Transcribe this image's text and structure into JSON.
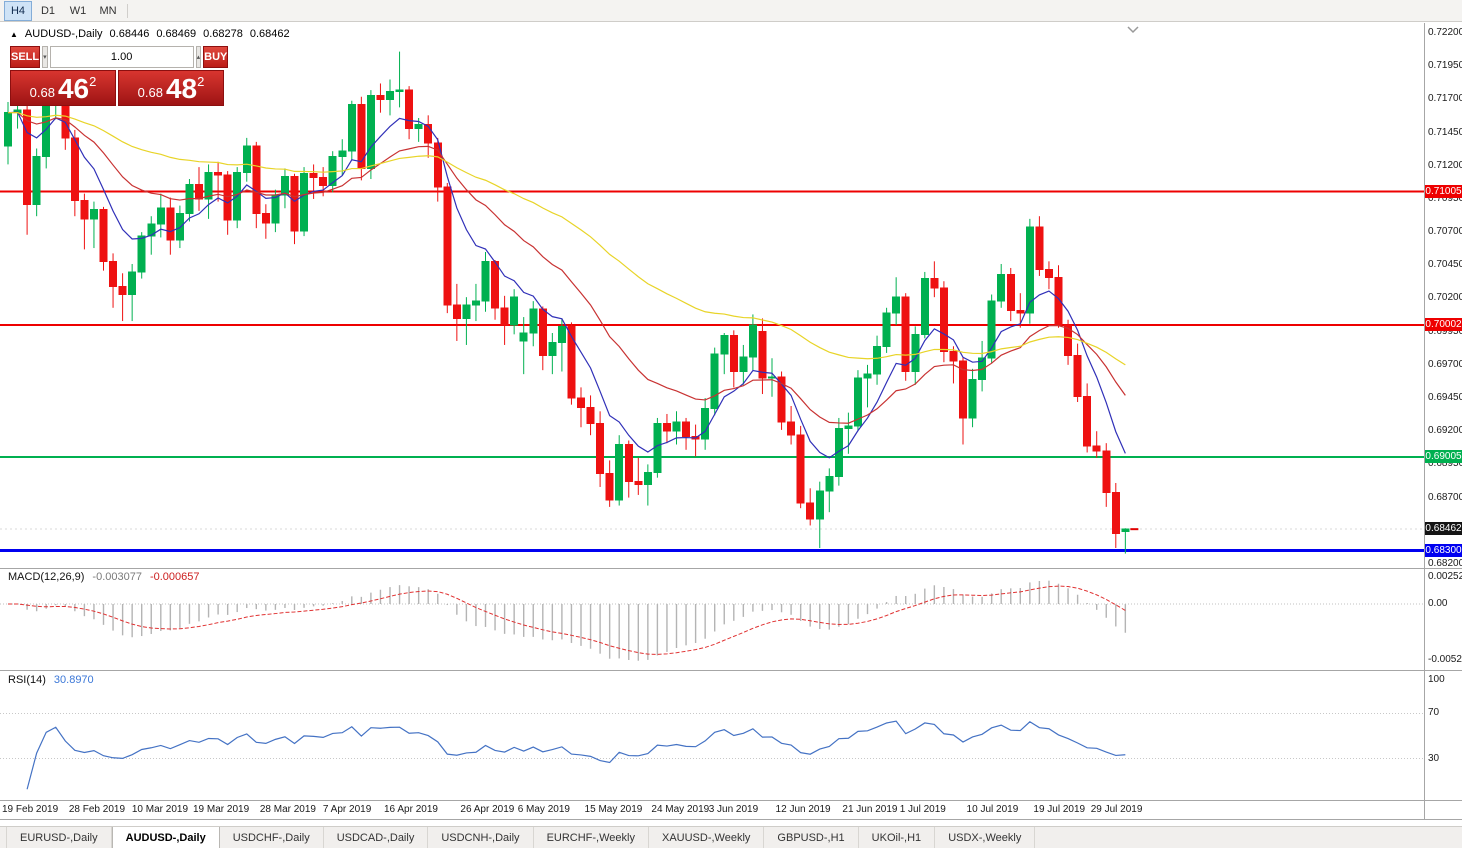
{
  "toolbar": {
    "timeframes": [
      {
        "label": "H4",
        "active": true
      },
      {
        "label": "D1",
        "active": false
      },
      {
        "label": "W1",
        "active": false
      },
      {
        "label": "MN",
        "active": false
      }
    ]
  },
  "chart_header": {
    "collapse_icon": "▲",
    "symbol": "AUDUSD-,Daily",
    "open": "0.68446",
    "high": "0.68469",
    "low": "0.68278",
    "close": "0.68462"
  },
  "trade_panel": {
    "sell_label": "SELL",
    "buy_label": "BUY",
    "volume": "1.00",
    "spin_down": "▾",
    "spin_up": "▴",
    "sell_price_small": "0.68",
    "sell_price_big": "46",
    "sell_price_sup": "2",
    "buy_price_small": "0.68",
    "buy_price_big": "48",
    "buy_price_sup": "2"
  },
  "price_axis": {
    "labels": [
      "0.72200",
      "0.71950",
      "0.71700",
      "0.71450",
      "0.71200",
      "0.70950",
      "0.70700",
      "0.70450",
      "0.70200",
      "0.69950",
      "0.69700",
      "0.69450",
      "0.69200",
      "0.68950",
      "0.68700",
      "0.68200"
    ]
  },
  "indicators": {
    "macd": {
      "label": "MACD(12,26,9)",
      "main_value": "-0.003077",
      "signal_value": "-0.000657",
      "axis_labels": [
        {
          "text": "0.0025220",
          "value": 0.002522
        },
        {
          "text": "0.00",
          "value": 0
        },
        {
          "text": "-0.0052340",
          "value": -0.005234
        }
      ]
    },
    "rsi": {
      "label": "RSI(14)",
      "value": "30.8970",
      "axis_labels": [
        {
          "text": "100",
          "value": 100
        },
        {
          "text": "70",
          "value": 70
        },
        {
          "text": "30",
          "value": 30
        }
      ],
      "levels": [
        70,
        30
      ]
    }
  },
  "tabbar": {
    "tabs": [
      {
        "label": "EURUSD-,Daily",
        "active": false
      },
      {
        "label": "AUDUSD-,Daily",
        "active": true
      },
      {
        "label": "USDCHF-,Daily",
        "active": false
      },
      {
        "label": "USDCAD-,Daily",
        "active": false
      },
      {
        "label": "USDCNH-,Daily",
        "active": false
      },
      {
        "label": "EURCHF-,Weekly",
        "active": false
      },
      {
        "label": "XAUUSD-,Weekly",
        "active": false
      },
      {
        "label": "GBPUSD-,H1",
        "active": false
      },
      {
        "label": "UKOil-,H1",
        "active": false
      },
      {
        "label": "USDX-,Weekly",
        "active": false
      }
    ]
  },
  "chart_data": {
    "type": "candlestick",
    "symbol": "AUDUSD",
    "timeframe": "Daily",
    "ylim": [
      0.68177,
      0.72253
    ],
    "up_color": "#00b050",
    "down_color": "#ee1111",
    "hlines": [
      {
        "value": 0.71005,
        "label": "0.71005",
        "color": "#ee0000",
        "width": 2
      },
      {
        "value": 0.70002,
        "label": "0.70002",
        "color": "#ee0000",
        "width": 2
      },
      {
        "value": 0.69005,
        "label": "0.69005",
        "color": "#00b050",
        "width": 2
      },
      {
        "value": 0.683,
        "label": "0.68300",
        "color": "#0000f0",
        "width": 3
      }
    ],
    "current_price": {
      "value": 0.68462,
      "label": "0.68462"
    },
    "moving_averages": [
      {
        "period": 8,
        "color": "#3030b8"
      },
      {
        "period": 21,
        "color": "#c83232"
      },
      {
        "period": 55,
        "color": "#e8d428"
      }
    ],
    "macd_params": [
      12,
      26,
      9
    ],
    "rsi_period": 14,
    "x_labels": [
      {
        "text": "19 Feb 2019",
        "bar": 0
      },
      {
        "text": "28 Feb 2019",
        "bar": 7
      },
      {
        "text": "10 Mar 2019",
        "bar": 13.6
      },
      {
        "text": "19 Mar 2019",
        "bar": 20
      },
      {
        "text": "28 Mar 2019",
        "bar": 27
      },
      {
        "text": "7 Apr 2019",
        "bar": 33.6
      },
      {
        "text": "16 Apr 2019",
        "bar": 40
      },
      {
        "text": "26 Apr 2019",
        "bar": 48
      },
      {
        "text": "6 May 2019",
        "bar": 54
      },
      {
        "text": "15 May 2019",
        "bar": 61
      },
      {
        "text": "24 May 2019",
        "bar": 68
      },
      {
        "text": "3 Jun 2019",
        "bar": 74
      },
      {
        "text": "12 Jun 2019",
        "bar": 81
      },
      {
        "text": "21 Jun 2019",
        "bar": 88
      },
      {
        "text": "1 Jul 2019",
        "bar": 94
      },
      {
        "text": "10 Jul 2019",
        "bar": 101
      },
      {
        "text": "19 Jul 2019",
        "bar": 108
      },
      {
        "text": "29 Jul 2019",
        "bar": 114
      }
    ],
    "ohlc": [
      [
        0.7135,
        0.7168,
        0.7121,
        0.716
      ],
      [
        0.716,
        0.7175,
        0.7148,
        0.7162
      ],
      [
        0.7162,
        0.7167,
        0.7068,
        0.7091
      ],
      [
        0.7091,
        0.7133,
        0.7082,
        0.7127
      ],
      [
        0.7127,
        0.7178,
        0.7118,
        0.717
      ],
      [
        0.717,
        0.719,
        0.7155,
        0.7186
      ],
      [
        0.7186,
        0.7191,
        0.7132,
        0.7141
      ],
      [
        0.7141,
        0.7147,
        0.7082,
        0.7094
      ],
      [
        0.7094,
        0.7099,
        0.7057,
        0.708
      ],
      [
        0.708,
        0.7093,
        0.7058,
        0.7087
      ],
      [
        0.7087,
        0.7089,
        0.7041,
        0.7048
      ],
      [
        0.7048,
        0.7054,
        0.7013,
        0.7029
      ],
      [
        0.7029,
        0.7039,
        0.7003,
        0.7023
      ],
      [
        0.7023,
        0.7046,
        0.7003,
        0.704
      ],
      [
        0.704,
        0.707,
        0.7035,
        0.7067
      ],
      [
        0.7067,
        0.7082,
        0.7053,
        0.7076
      ],
      [
        0.7076,
        0.7099,
        0.7066,
        0.7088
      ],
      [
        0.7088,
        0.7096,
        0.7053,
        0.7064
      ],
      [
        0.7064,
        0.709,
        0.7058,
        0.7084
      ],
      [
        0.7084,
        0.711,
        0.7078,
        0.7106
      ],
      [
        0.7106,
        0.7119,
        0.7086,
        0.7095
      ],
      [
        0.7095,
        0.7121,
        0.708,
        0.7115
      ],
      [
        0.7115,
        0.7123,
        0.7093,
        0.7113
      ],
      [
        0.7113,
        0.7116,
        0.7068,
        0.7079
      ],
      [
        0.7079,
        0.7119,
        0.7073,
        0.7115
      ],
      [
        0.7115,
        0.7141,
        0.7108,
        0.7135
      ],
      [
        0.7135,
        0.7138,
        0.7073,
        0.7084
      ],
      [
        0.7084,
        0.7091,
        0.7065,
        0.7077
      ],
      [
        0.7077,
        0.7102,
        0.707,
        0.7098
      ],
      [
        0.7098,
        0.7118,
        0.7088,
        0.7112
      ],
      [
        0.7112,
        0.7114,
        0.7061,
        0.7071
      ],
      [
        0.7071,
        0.7119,
        0.7067,
        0.7114
      ],
      [
        0.7114,
        0.7121,
        0.7095,
        0.7111
      ],
      [
        0.7111,
        0.7119,
        0.7097,
        0.7105
      ],
      [
        0.7105,
        0.7131,
        0.71,
        0.7127
      ],
      [
        0.7127,
        0.714,
        0.7113,
        0.7131
      ],
      [
        0.7131,
        0.7169,
        0.7124,
        0.7166
      ],
      [
        0.7166,
        0.7172,
        0.7109,
        0.7118
      ],
      [
        0.7118,
        0.7177,
        0.711,
        0.7173
      ],
      [
        0.7173,
        0.7182,
        0.716,
        0.717
      ],
      [
        0.717,
        0.7185,
        0.7158,
        0.7176
      ],
      [
        0.7176,
        0.7206,
        0.7164,
        0.7177
      ],
      [
        0.7177,
        0.718,
        0.714,
        0.7148
      ],
      [
        0.7148,
        0.7156,
        0.7138,
        0.7151
      ],
      [
        0.7151,
        0.7158,
        0.7126,
        0.7137
      ],
      [
        0.7137,
        0.7141,
        0.7093,
        0.7104
      ],
      [
        0.7104,
        0.7107,
        0.7009,
        0.7015
      ],
      [
        0.7015,
        0.7031,
        0.6988,
        0.7005
      ],
      [
        0.7005,
        0.7021,
        0.6985,
        0.7015
      ],
      [
        0.7015,
        0.7031,
        0.7003,
        0.7018
      ],
      [
        0.7018,
        0.7055,
        0.701,
        0.7048
      ],
      [
        0.7048,
        0.7049,
        0.7004,
        0.7013
      ],
      [
        0.7013,
        0.7022,
        0.6985,
        0.7
      ],
      [
        0.7,
        0.7027,
        0.6993,
        0.7021
      ],
      [
        0.6988,
        0.7006,
        0.6963,
        0.6994
      ],
      [
        0.6994,
        0.7018,
        0.6984,
        0.7012
      ],
      [
        0.7012,
        0.7014,
        0.6966,
        0.6977
      ],
      [
        0.6977,
        0.6994,
        0.6963,
        0.6987
      ],
      [
        0.6987,
        0.7005,
        0.6965,
        0.6999
      ],
      [
        0.6999,
        0.7002,
        0.694,
        0.6945
      ],
      [
        0.6945,
        0.6953,
        0.6923,
        0.6938
      ],
      [
        0.6938,
        0.6947,
        0.6917,
        0.6926
      ],
      [
        0.6926,
        0.6935,
        0.6878,
        0.6888
      ],
      [
        0.6888,
        0.6898,
        0.6863,
        0.6868
      ],
      [
        0.6868,
        0.6917,
        0.6864,
        0.691
      ],
      [
        0.691,
        0.6913,
        0.687,
        0.6882
      ],
      [
        0.6882,
        0.69,
        0.6872,
        0.688
      ],
      [
        0.688,
        0.6895,
        0.6864,
        0.6889
      ],
      [
        0.6889,
        0.693,
        0.6885,
        0.6926
      ],
      [
        0.6926,
        0.6933,
        0.6911,
        0.692
      ],
      [
        0.692,
        0.6935,
        0.691,
        0.6927
      ],
      [
        0.6927,
        0.693,
        0.6906,
        0.6916
      ],
      [
        0.6916,
        0.6925,
        0.6901,
        0.6914
      ],
      [
        0.6914,
        0.6945,
        0.6906,
        0.6937
      ],
      [
        0.6937,
        0.6983,
        0.6932,
        0.6978
      ],
      [
        0.6978,
        0.6994,
        0.6963,
        0.6992
      ],
      [
        0.6992,
        0.6996,
        0.6953,
        0.6965
      ],
      [
        0.6965,
        0.6985,
        0.6955,
        0.6976
      ],
      [
        0.6976,
        0.7008,
        0.6966,
        0.7
      ],
      [
        0.6995,
        0.7005,
        0.6948,
        0.696
      ],
      [
        0.696,
        0.6975,
        0.6946,
        0.6961
      ],
      [
        0.6961,
        0.6965,
        0.6921,
        0.6927
      ],
      [
        0.6927,
        0.6939,
        0.691,
        0.6917
      ],
      [
        0.6917,
        0.6924,
        0.6862,
        0.6866
      ],
      [
        0.6866,
        0.6877,
        0.6849,
        0.6854
      ],
      [
        0.6854,
        0.6882,
        0.6832,
        0.6875
      ],
      [
        0.6875,
        0.6892,
        0.6859,
        0.6886
      ],
      [
        0.6886,
        0.693,
        0.6879,
        0.6922
      ],
      [
        0.6922,
        0.6934,
        0.6903,
        0.6924
      ],
      [
        0.6924,
        0.6966,
        0.692,
        0.696
      ],
      [
        0.696,
        0.697,
        0.6938,
        0.6963
      ],
      [
        0.6963,
        0.6992,
        0.6955,
        0.6984
      ],
      [
        0.6984,
        0.7013,
        0.6979,
        0.7009
      ],
      [
        0.7009,
        0.7036,
        0.7,
        0.7021
      ],
      [
        0.7021,
        0.7024,
        0.6958,
        0.6965
      ],
      [
        0.6965,
        0.6999,
        0.6955,
        0.6993
      ],
      [
        0.6993,
        0.704,
        0.699,
        0.7035
      ],
      [
        0.7035,
        0.7048,
        0.7021,
        0.7028
      ],
      [
        0.7028,
        0.7033,
        0.6972,
        0.698
      ],
      [
        0.698,
        0.6984,
        0.6956,
        0.6973
      ],
      [
        0.6973,
        0.6976,
        0.691,
        0.693
      ],
      [
        0.693,
        0.6967,
        0.6923,
        0.6959
      ],
      [
        0.6959,
        0.6988,
        0.695,
        0.6975
      ],
      [
        0.6975,
        0.7023,
        0.6971,
        0.7018
      ],
      [
        0.7018,
        0.7046,
        0.7013,
        0.7038
      ],
      [
        0.7038,
        0.7043,
        0.7003,
        0.7011
      ],
      [
        0.7011,
        0.7024,
        0.6998,
        0.7009
      ],
      [
        0.7009,
        0.708,
        0.7001,
        0.7074
      ],
      [
        0.7074,
        0.7082,
        0.7037,
        0.7042
      ],
      [
        0.7042,
        0.7048,
        0.7027,
        0.7036
      ],
      [
        0.7036,
        0.7045,
        0.6998,
        0.7
      ],
      [
        0.7,
        0.7004,
        0.697,
        0.6977
      ],
      [
        0.6977,
        0.6986,
        0.6942,
        0.6946
      ],
      [
        0.6946,
        0.6956,
        0.6904,
        0.6909
      ],
      [
        0.6909,
        0.692,
        0.69,
        0.6905
      ],
      [
        0.6905,
        0.6911,
        0.6863,
        0.6874
      ],
      [
        0.6874,
        0.6881,
        0.6832,
        0.6843
      ],
      [
        0.68446,
        0.68469,
        0.68278,
        0.68462
      ]
    ]
  }
}
